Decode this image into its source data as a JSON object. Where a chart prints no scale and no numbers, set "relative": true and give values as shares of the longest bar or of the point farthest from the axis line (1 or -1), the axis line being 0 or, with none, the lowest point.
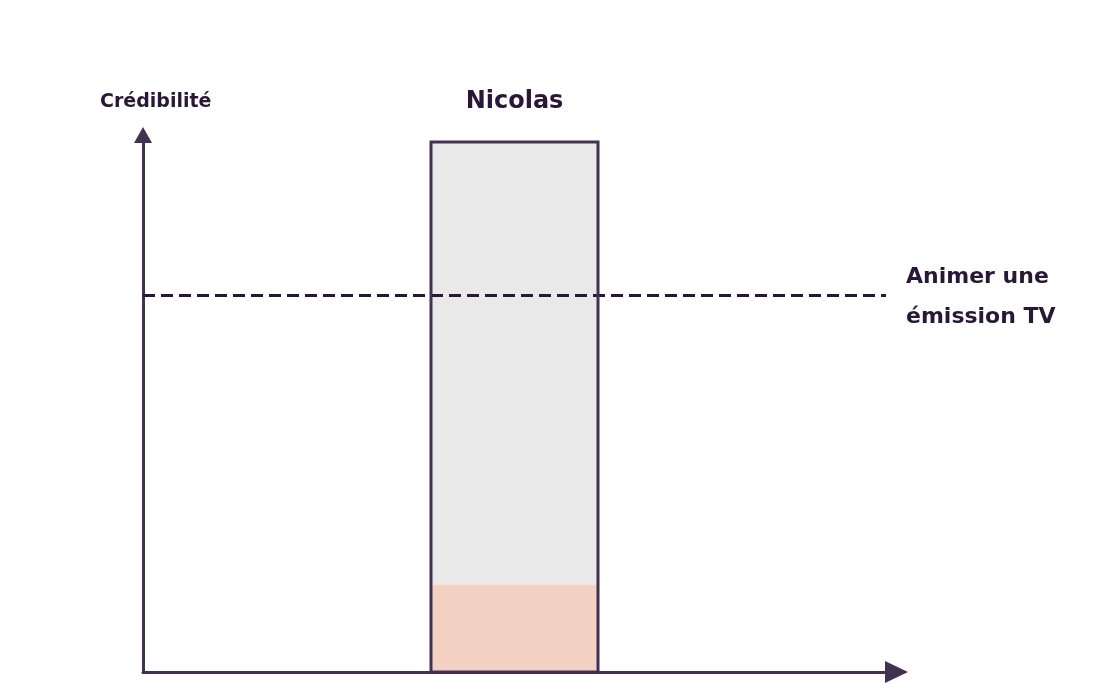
{
  "chart_data": {
    "type": "bar",
    "annotations": [
      "Crédibilité"
    ],
    "categories": [
      "Nicolas"
    ],
    "stacked": true,
    "relative": true,
    "series": [
      {
        "color": "#f3d2c3",
        "values": [
          0.164
        ]
      },
      {
        "color": "#e9e9e9",
        "values": [
          0.836
        ]
      }
    ],
    "ref_lines": [
      {
        "axis": "y",
        "value": 0.708,
        "label": "Animer une émission TV",
        "color": "#2a1738",
        "line_style": "dashed"
      }
    ]
  }
}
